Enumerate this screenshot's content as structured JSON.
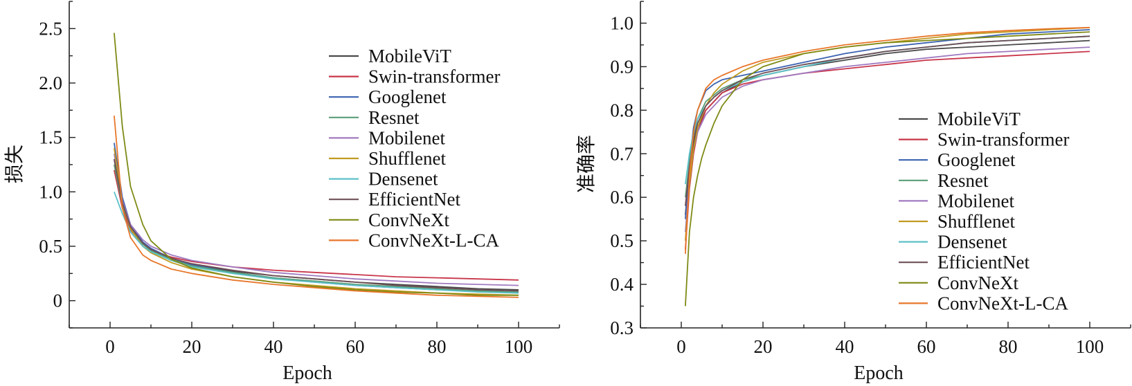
{
  "chart_data": [
    {
      "type": "line",
      "xlabel": "Epoch",
      "ylabel": "损失",
      "xlim": [
        -10,
        110
      ],
      "ylim": [
        -0.25,
        2.75
      ],
      "xticks": [
        0,
        20,
        40,
        60,
        80,
        100
      ],
      "yticks": [
        0,
        0.5,
        1.0,
        1.5,
        2.0,
        2.5
      ],
      "ytick_labels": [
        "0",
        "0.5",
        "1.0",
        "1.5",
        "2.0",
        "2.5"
      ],
      "legend_position": "top-right",
      "grid": false,
      "series": [
        {
          "name": "MobileViT",
          "color": "#4a4a4a",
          "x": [
            1,
            3,
            5,
            8,
            10,
            15,
            20,
            30,
            40,
            50,
            60,
            70,
            80,
            90,
            100
          ],
          "values": [
            1.3,
            0.9,
            0.68,
            0.53,
            0.47,
            0.39,
            0.33,
            0.27,
            0.23,
            0.2,
            0.17,
            0.15,
            0.13,
            0.11,
            0.1
          ]
        },
        {
          "name": "Swin-transformer",
          "color": "#c8354a",
          "x": [
            1,
            3,
            5,
            8,
            10,
            15,
            20,
            30,
            40,
            50,
            60,
            70,
            80,
            90,
            100
          ],
          "values": [
            1.2,
            0.85,
            0.65,
            0.52,
            0.46,
            0.4,
            0.36,
            0.31,
            0.28,
            0.26,
            0.24,
            0.22,
            0.21,
            0.2,
            0.19
          ]
        },
        {
          "name": "Googlenet",
          "color": "#3a62b0",
          "x": [
            1,
            3,
            5,
            8,
            10,
            15,
            20,
            30,
            40,
            50,
            60,
            70,
            80,
            90,
            100
          ],
          "values": [
            1.45,
            0.95,
            0.7,
            0.54,
            0.48,
            0.39,
            0.33,
            0.26,
            0.21,
            0.17,
            0.14,
            0.12,
            0.1,
            0.09,
            0.08
          ]
        },
        {
          "name": "Resnet",
          "color": "#5a9e78",
          "x": [
            1,
            3,
            5,
            8,
            10,
            15,
            20,
            30,
            40,
            50,
            60,
            70,
            80,
            90,
            100
          ],
          "values": [
            1.25,
            0.88,
            0.67,
            0.52,
            0.46,
            0.38,
            0.32,
            0.26,
            0.21,
            0.18,
            0.15,
            0.13,
            0.11,
            0.09,
            0.08
          ]
        },
        {
          "name": "Mobilenet",
          "color": "#a07ac0",
          "x": [
            1,
            3,
            5,
            8,
            10,
            15,
            20,
            30,
            40,
            50,
            60,
            70,
            80,
            90,
            100
          ],
          "values": [
            1.35,
            0.92,
            0.7,
            0.56,
            0.5,
            0.42,
            0.37,
            0.31,
            0.26,
            0.23,
            0.2,
            0.18,
            0.16,
            0.15,
            0.14
          ]
        },
        {
          "name": "Shufflenet",
          "color": "#c09a20",
          "x": [
            1,
            3,
            5,
            8,
            10,
            15,
            20,
            30,
            40,
            50,
            60,
            70,
            80,
            90,
            100
          ],
          "values": [
            1.4,
            0.9,
            0.66,
            0.5,
            0.44,
            0.35,
            0.29,
            0.22,
            0.17,
            0.14,
            0.11,
            0.09,
            0.07,
            0.06,
            0.05
          ]
        },
        {
          "name": "Densenet",
          "color": "#5bc0c8",
          "x": [
            1,
            3,
            5,
            8,
            10,
            15,
            20,
            30,
            40,
            50,
            60,
            70,
            80,
            90,
            100
          ],
          "values": [
            1.0,
            0.8,
            0.63,
            0.5,
            0.45,
            0.37,
            0.31,
            0.25,
            0.2,
            0.17,
            0.14,
            0.12,
            0.1,
            0.08,
            0.07
          ]
        },
        {
          "name": "EfficientNet",
          "color": "#6e4e56",
          "x": [
            1,
            3,
            5,
            8,
            10,
            15,
            20,
            30,
            40,
            50,
            60,
            70,
            80,
            90,
            100
          ],
          "values": [
            1.3,
            0.9,
            0.68,
            0.53,
            0.47,
            0.39,
            0.34,
            0.28,
            0.23,
            0.2,
            0.17,
            0.14,
            0.12,
            0.1,
            0.09
          ]
        },
        {
          "name": "ConvNeXt",
          "color": "#7e8a14",
          "x": [
            1,
            3,
            5,
            8,
            10,
            15,
            20,
            30,
            40,
            50,
            60,
            70,
            80,
            90,
            100
          ],
          "values": [
            2.46,
            1.6,
            1.05,
            0.7,
            0.55,
            0.38,
            0.3,
            0.22,
            0.17,
            0.13,
            0.1,
            0.08,
            0.07,
            0.05,
            0.05
          ]
        },
        {
          "name": "ConvNeXt-L-CA",
          "color": "#e8762a",
          "x": [
            1,
            3,
            5,
            8,
            10,
            15,
            20,
            30,
            40,
            50,
            60,
            70,
            80,
            90,
            100
          ],
          "values": [
            1.7,
            0.85,
            0.58,
            0.42,
            0.37,
            0.29,
            0.25,
            0.19,
            0.15,
            0.12,
            0.09,
            0.07,
            0.05,
            0.04,
            0.03
          ]
        }
      ]
    },
    {
      "type": "line",
      "xlabel": "Epoch",
      "ylabel": "准确率",
      "xlim": [
        -10,
        110
      ],
      "ylim": [
        0.3,
        1.05
      ],
      "xticks": [
        0,
        20,
        40,
        60,
        80,
        100
      ],
      "yticks": [
        0.3,
        0.4,
        0.5,
        0.6,
        0.7,
        0.8,
        0.9,
        1.0
      ],
      "ytick_labels": [
        "0.3",
        "0.4",
        "0.5",
        "0.6",
        "0.7",
        "0.8",
        "0.9",
        "1.0"
      ],
      "legend_position": "bottom-right",
      "grid": false,
      "series": [
        {
          "name": "MobileViT",
          "color": "#4a4a4a",
          "x": [
            1,
            2,
            3,
            4,
            6,
            8,
            10,
            15,
            20,
            30,
            40,
            50,
            60,
            70,
            80,
            90,
            100
          ],
          "values": [
            0.56,
            0.66,
            0.72,
            0.76,
            0.8,
            0.82,
            0.84,
            0.865,
            0.88,
            0.9,
            0.915,
            0.93,
            0.94,
            0.945,
            0.95,
            0.955,
            0.96
          ]
        },
        {
          "name": "Swin-transformer",
          "color": "#c8354a",
          "x": [
            1,
            2,
            3,
            4,
            6,
            8,
            10,
            15,
            20,
            30,
            40,
            50,
            60,
            70,
            80,
            90,
            100
          ],
          "values": [
            0.48,
            0.62,
            0.7,
            0.75,
            0.8,
            0.82,
            0.84,
            0.86,
            0.87,
            0.885,
            0.895,
            0.905,
            0.915,
            0.92,
            0.925,
            0.93,
            0.935
          ]
        },
        {
          "name": "Googlenet",
          "color": "#3a62b0",
          "x": [
            1,
            2,
            3,
            4,
            6,
            8,
            10,
            15,
            20,
            30,
            40,
            50,
            60,
            70,
            80,
            90,
            100
          ],
          "values": [
            0.55,
            0.68,
            0.76,
            0.8,
            0.845,
            0.86,
            0.87,
            0.88,
            0.89,
            0.91,
            0.93,
            0.945,
            0.955,
            0.965,
            0.975,
            0.98,
            0.985
          ]
        },
        {
          "name": "Resnet",
          "color": "#5a9e78",
          "x": [
            1,
            2,
            3,
            4,
            6,
            8,
            10,
            15,
            20,
            30,
            40,
            50,
            60,
            70,
            80,
            90,
            100
          ],
          "values": [
            0.6,
            0.68,
            0.74,
            0.78,
            0.82,
            0.835,
            0.85,
            0.87,
            0.88,
            0.9,
            0.92,
            0.935,
            0.945,
            0.955,
            0.96,
            0.965,
            0.97
          ]
        },
        {
          "name": "Mobilenet",
          "color": "#a07ac0",
          "x": [
            1,
            2,
            3,
            4,
            6,
            8,
            10,
            15,
            20,
            30,
            40,
            50,
            60,
            70,
            80,
            90,
            100
          ],
          "values": [
            0.52,
            0.64,
            0.71,
            0.75,
            0.79,
            0.81,
            0.83,
            0.855,
            0.87,
            0.885,
            0.9,
            0.91,
            0.92,
            0.93,
            0.935,
            0.94,
            0.945
          ]
        },
        {
          "name": "Shufflenet",
          "color": "#c09a20",
          "x": [
            1,
            2,
            3,
            4,
            6,
            8,
            10,
            15,
            20,
            30,
            40,
            50,
            60,
            70,
            80,
            90,
            100
          ],
          "values": [
            0.5,
            0.63,
            0.71,
            0.76,
            0.81,
            0.84,
            0.86,
            0.89,
            0.91,
            0.93,
            0.945,
            0.955,
            0.965,
            0.975,
            0.98,
            0.985,
            0.99
          ]
        },
        {
          "name": "Densenet",
          "color": "#5bc0c8",
          "x": [
            1,
            2,
            3,
            4,
            6,
            8,
            10,
            15,
            20,
            30,
            40,
            50,
            60,
            70,
            80,
            90,
            100
          ],
          "values": [
            0.63,
            0.7,
            0.75,
            0.78,
            0.81,
            0.83,
            0.845,
            0.865,
            0.88,
            0.9,
            0.92,
            0.935,
            0.945,
            0.955,
            0.96,
            0.965,
            0.97
          ]
        },
        {
          "name": "EfficientNet",
          "color": "#6e4e56",
          "x": [
            1,
            2,
            3,
            4,
            6,
            8,
            10,
            15,
            20,
            30,
            40,
            50,
            60,
            70,
            80,
            90,
            100
          ],
          "values": [
            0.58,
            0.67,
            0.73,
            0.77,
            0.81,
            0.83,
            0.845,
            0.87,
            0.885,
            0.905,
            0.92,
            0.935,
            0.945,
            0.955,
            0.96,
            0.965,
            0.97
          ]
        },
        {
          "name": "ConvNeXt",
          "color": "#7e8a14",
          "x": [
            1,
            2,
            3,
            4,
            5,
            6,
            8,
            10,
            15,
            20,
            30,
            40,
            50,
            60,
            70,
            80,
            90,
            100
          ],
          "values": [
            0.35,
            0.52,
            0.6,
            0.65,
            0.69,
            0.72,
            0.77,
            0.81,
            0.87,
            0.9,
            0.93,
            0.945,
            0.955,
            0.96,
            0.965,
            0.97,
            0.975,
            0.98
          ]
        },
        {
          "name": "ConvNeXt-L-CA",
          "color": "#e8762a",
          "x": [
            1,
            2,
            3,
            4,
            6,
            8,
            10,
            15,
            20,
            30,
            40,
            50,
            60,
            70,
            80,
            90,
            100
          ],
          "values": [
            0.47,
            0.65,
            0.75,
            0.8,
            0.85,
            0.87,
            0.88,
            0.9,
            0.915,
            0.935,
            0.95,
            0.96,
            0.97,
            0.978,
            0.983,
            0.987,
            0.99
          ]
        }
      ]
    }
  ]
}
